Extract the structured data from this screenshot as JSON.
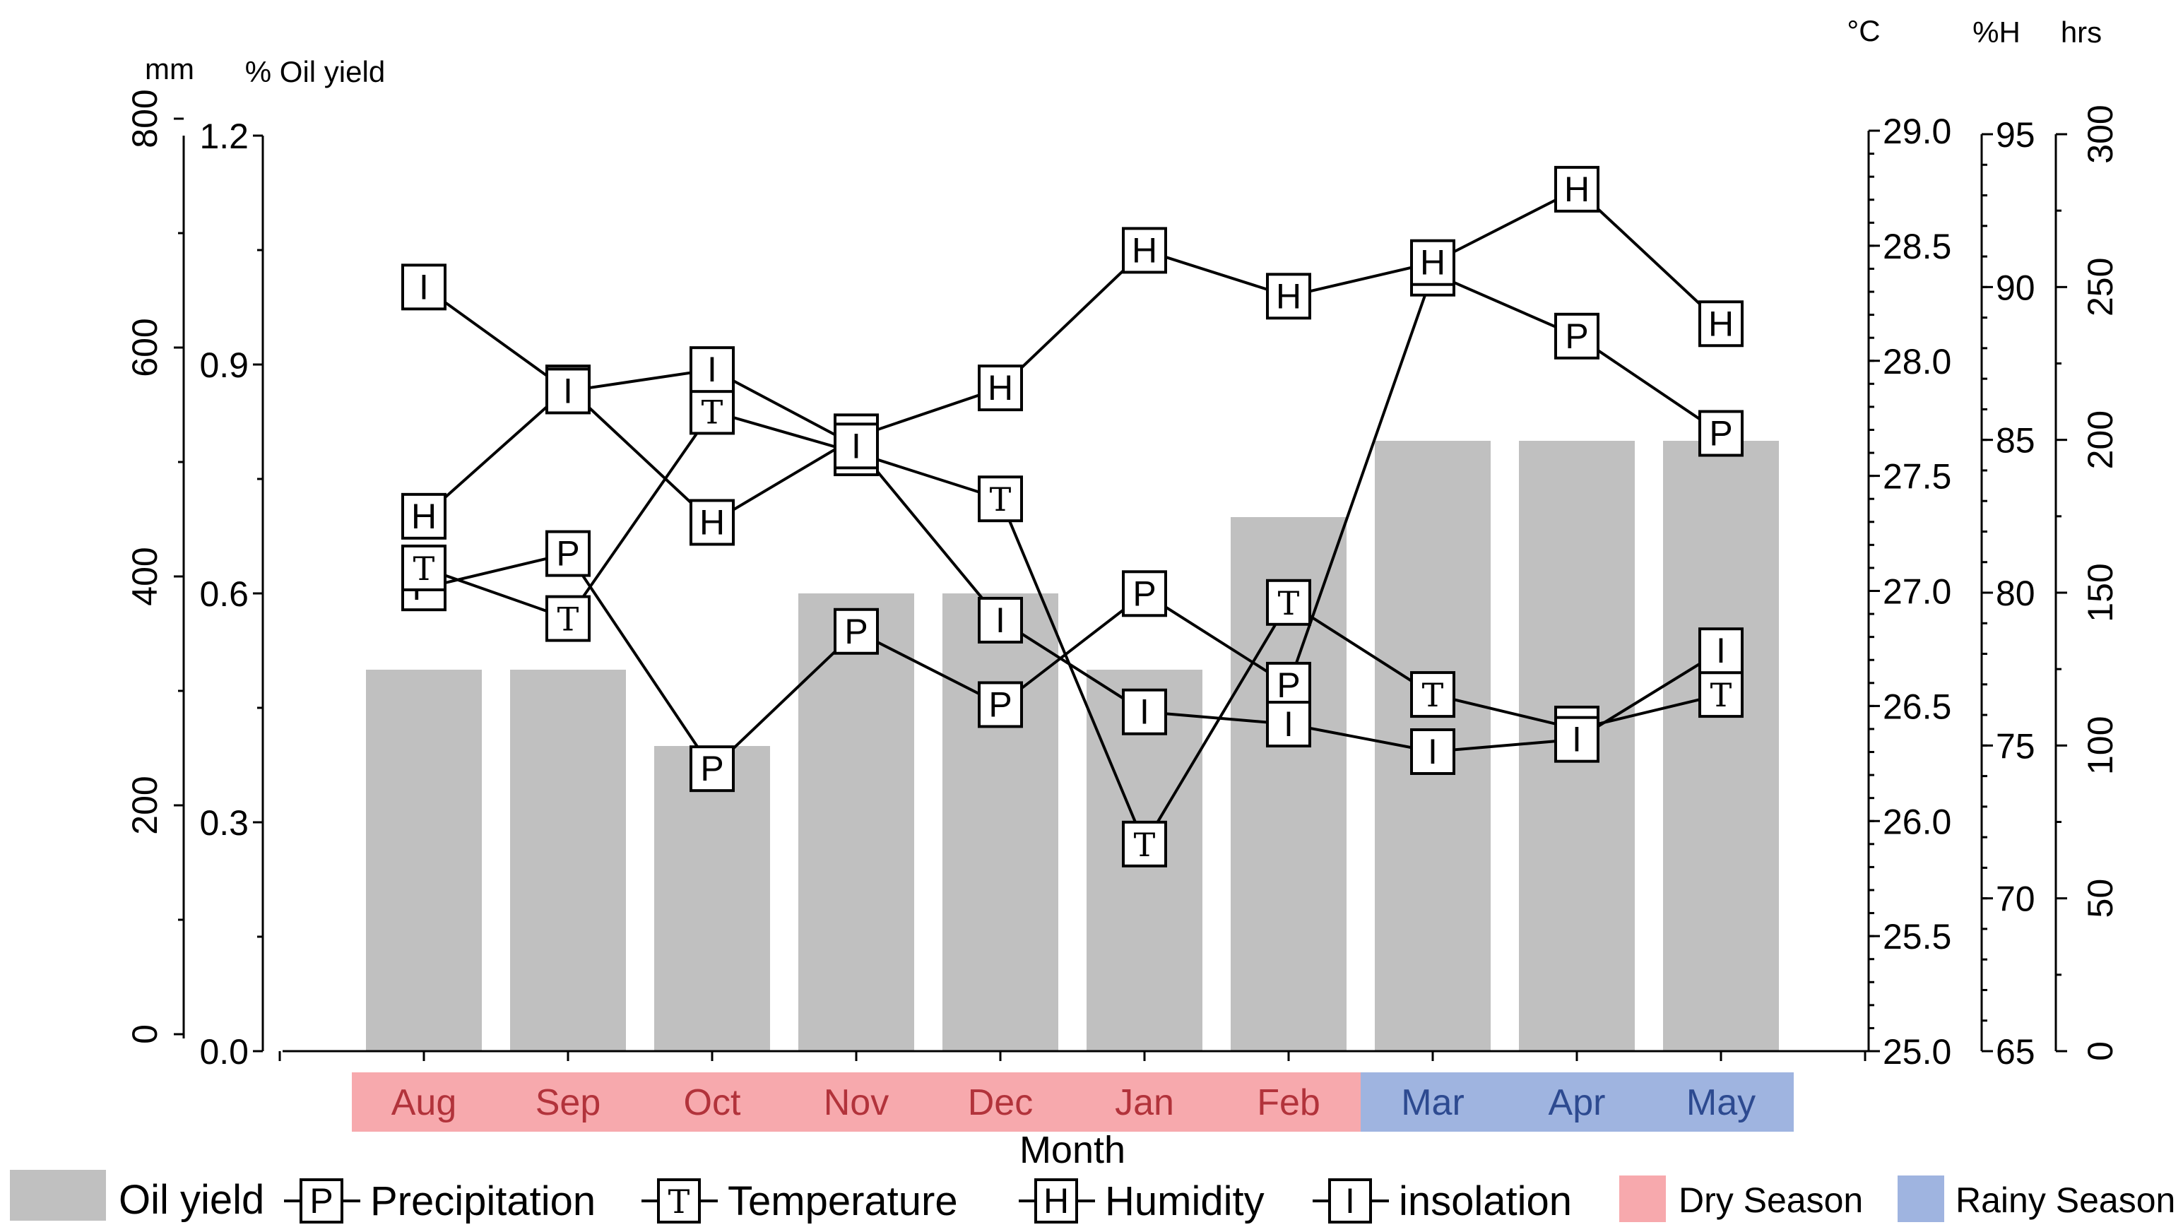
{
  "chart_data": {
    "type": "bar+line",
    "xlabel": "Month",
    "categories": [
      "Aug",
      "Sep",
      "Oct",
      "Nov",
      "Dec",
      "Jan",
      "Feb",
      "Mar",
      "Apr",
      "May"
    ],
    "seasons": [
      {
        "name": "Dry Season",
        "months": [
          "Aug",
          "Sep",
          "Oct",
          "Nov",
          "Dec",
          "Jan",
          "Feb"
        ],
        "color": "#f7a9ad"
      },
      {
        "name": "Rainy Season",
        "months": [
          "Mar",
          "Apr",
          "May"
        ],
        "color": "#9fb4e0"
      }
    ],
    "bar_series": {
      "name": "Oil yield",
      "color": "#c0c0c0",
      "values": [
        0.5,
        0.5,
        0.4,
        0.6,
        0.6,
        0.5,
        0.7,
        0.8,
        0.8,
        0.8
      ]
    },
    "line_series": [
      {
        "name": "Precipitation",
        "marker": "P",
        "axis": "mm",
        "values": [
          390,
          420,
          232,
          352,
          288,
          385,
          305,
          665,
          610,
          525
        ]
      },
      {
        "name": "Temperature",
        "marker": "T",
        "axis": "°C",
        "values": [
          27.1,
          26.88,
          27.78,
          27.6,
          27.4,
          25.9,
          26.95,
          26.55,
          26.4,
          26.55
        ]
      },
      {
        "name": "Humidity",
        "marker": "H",
        "axis": "%H",
        "values": [
          82.5,
          86.7,
          82.3,
          85.1,
          86.7,
          91.2,
          89.7,
          90.8,
          93.2,
          88.8
        ]
      },
      {
        "name": "insolation",
        "marker": "I",
        "axis": "hrs",
        "values": [
          250,
          216,
          223,
          198,
          141,
          111,
          107,
          98,
          102,
          131
        ]
      }
    ],
    "axes": {
      "oil_yield": {
        "unit": "% Oil yield",
        "range": [
          0.0,
          1.2
        ],
        "ticks": [
          "0.0",
          "0.3",
          "0.6",
          "0.9",
          "1.2"
        ]
      },
      "precipitation": {
        "unit": "mm",
        "range": [
          0,
          800
        ],
        "ticks": [
          "0",
          "200",
          "400",
          "600",
          "800"
        ]
      },
      "temperature": {
        "unit": "°C",
        "range": [
          25.0,
          29.0
        ],
        "ticks": [
          "25.0",
          "25.5",
          "26.0",
          "26.5",
          "27.0",
          "27.5",
          "28.0",
          "28.5",
          "29.0"
        ]
      },
      "humidity": {
        "unit": "%H",
        "range": [
          65,
          95
        ],
        "ticks": [
          "65",
          "70",
          "75",
          "80",
          "85",
          "90",
          "95"
        ]
      },
      "insolation": {
        "unit": "hrs",
        "range": [
          0,
          300
        ],
        "ticks": [
          "0",
          "50",
          "100",
          "150",
          "200",
          "250",
          "300"
        ]
      }
    },
    "legend": {
      "oil_yield": "Oil yield",
      "precipitation": "Precipitation",
      "temperature": "Temperature",
      "humidity": "Humidity",
      "insolation": "insolation",
      "dry": "Dry Season",
      "rainy": "Rainy Season"
    }
  }
}
